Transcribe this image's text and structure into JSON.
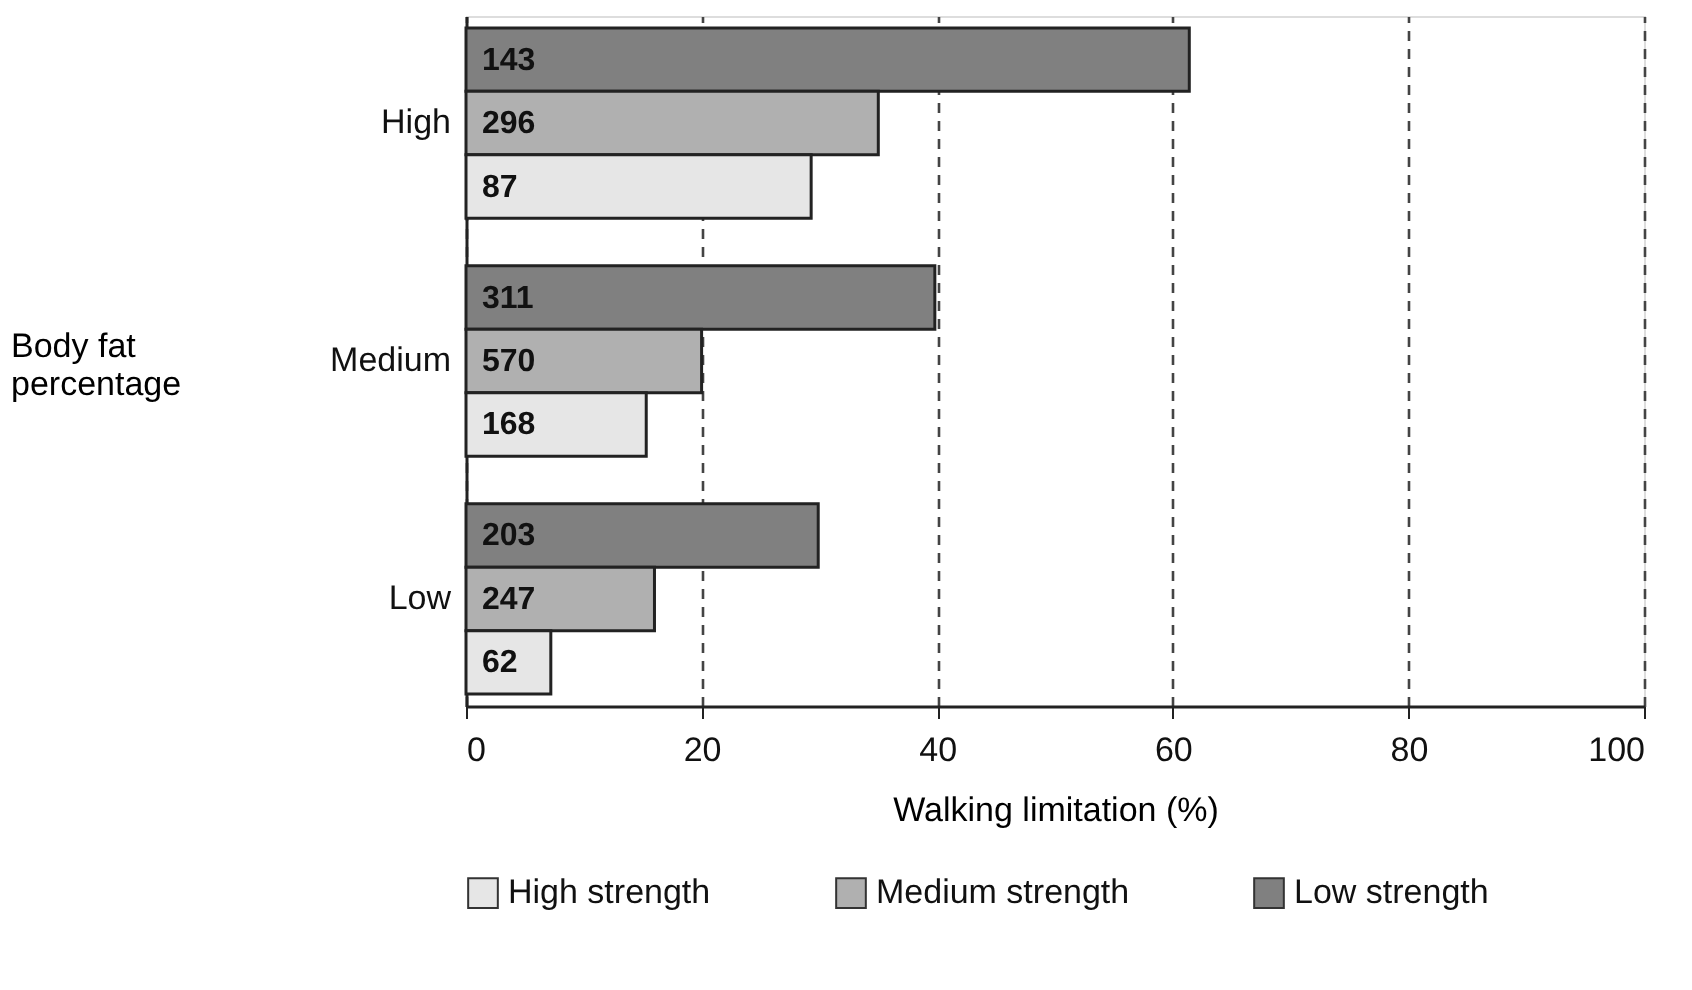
{
  "chart_data": {
    "type": "bar",
    "orientation": "horizontal",
    "xlabel": "Walking limitation (%)",
    "ylabel": "Body fat percentage",
    "categories": [
      "High",
      "Medium",
      "Low"
    ],
    "series": [
      {
        "name": "Low strength",
        "color": "#808080",
        "values": [
          61.4,
          39.8,
          29.9
        ]
      },
      {
        "name": "Medium strength",
        "color": "#b0b0b0",
        "values": [
          35.0,
          20.0,
          16.0
        ]
      },
      {
        "name": "High strength",
        "color": "#e6e6e6",
        "values": [
          29.3,
          15.3,
          7.2
        ]
      }
    ],
    "annotations": [
      "143",
      "296",
      "87",
      "311",
      "570",
      "168",
      "203",
      "247",
      "62"
    ],
    "xlim": [
      0,
      100
    ],
    "xticks": [
      0,
      20,
      40,
      60,
      80,
      100
    ],
    "grid": "x",
    "legend": "bottom"
  }
}
